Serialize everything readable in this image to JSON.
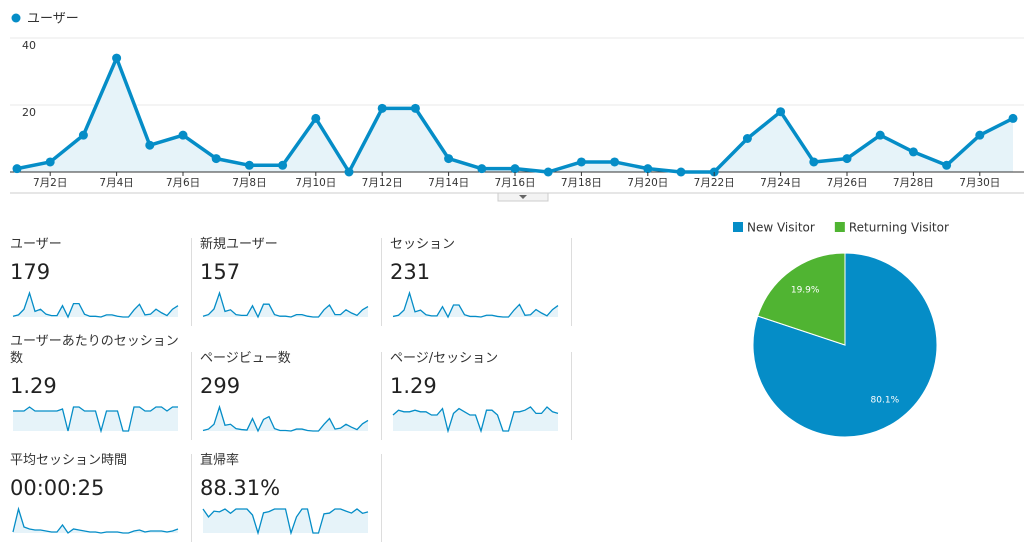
{
  "chart_data": [
    {
      "type": "line",
      "categories": [
        null,
        "7月2日",
        null,
        "7月4日",
        null,
        "7月6日",
        null,
        "7月8日",
        null,
        "7月10日",
        null,
        "7月12日",
        null,
        "7月14日",
        null,
        "7月16日",
        null,
        "7月18日",
        null,
        "7月20日",
        null,
        "7月22日",
        null,
        "7月24日",
        null,
        "7月26日",
        null,
        "7月28日",
        null,
        "7月30日",
        null
      ],
      "series": [
        {
          "name": "ユーザー",
          "color": "#058dc7",
          "values": [
            1,
            3,
            11,
            34,
            8,
            11,
            4,
            2,
            2,
            16,
            0,
            19,
            19,
            4,
            1,
            1,
            0,
            3,
            3,
            1,
            0,
            0,
            10,
            18,
            3,
            4,
            11,
            6,
            2,
            11,
            16
          ]
        }
      ],
      "ylim": [
        0,
        40
      ],
      "yticks": [
        20,
        40
      ],
      "grid": true,
      "legend": "top-left"
    },
    {
      "type": "pie",
      "categories": [
        "New Visitor",
        "Returning Visitor"
      ],
      "values": [
        80.1,
        19.9
      ],
      "value_labels": [
        "80.1%",
        "19.9%"
      ],
      "colors": [
        "#058dc7",
        "#50b432"
      ],
      "legend": "top"
    }
  ],
  "metrics": [
    {
      "label": "ユーザー",
      "value": "179"
    },
    {
      "label": "新規ユーザー",
      "value": "157",
      "sparkline": [
        1,
        3,
        10,
        30,
        7,
        9,
        3,
        2,
        2,
        14,
        0,
        16,
        16,
        3,
        1,
        1,
        0,
        3,
        3,
        1,
        0,
        0,
        9,
        15,
        3,
        3,
        9,
        5,
        2,
        9,
        13
      ]
    },
    {
      "label": "セッション",
      "value": "231",
      "sparkline": [
        1,
        3,
        12,
        42,
        9,
        12,
        4,
        2,
        2,
        18,
        0,
        21,
        21,
        4,
        1,
        1,
        0,
        3,
        3,
        1,
        0,
        0,
        12,
        22,
        3,
        4,
        13,
        7,
        2,
        13,
        20
      ]
    },
    {
      "label": "ユーザーあたりのセッション数",
      "value": "1.29",
      "sparkline": [
        1,
        1,
        1,
        1.2,
        1,
        1,
        1,
        1,
        1,
        1.1,
        0,
        1.2,
        1.2,
        1,
        1,
        1,
        0,
        1,
        1,
        1,
        0,
        0,
        1.2,
        1.2,
        1,
        1,
        1.2,
        1.2,
        1,
        1.2,
        1.2
      ]
    },
    {
      "label": "ページビュー数",
      "value": "299",
      "sparkline": [
        1,
        4,
        14,
        50,
        12,
        14,
        5,
        3,
        2,
        26,
        0,
        24,
        30,
        5,
        1,
        1,
        0,
        4,
        4,
        1,
        0,
        0,
        14,
        26,
        4,
        6,
        14,
        8,
        3,
        15,
        22
      ]
    },
    {
      "label": "ページ/セッション",
      "value": "1.29",
      "sparkline": [
        1,
        1.3,
        1.2,
        1.2,
        1.3,
        1.2,
        1.2,
        1,
        1,
        1.4,
        0,
        1.1,
        1.4,
        1.2,
        1,
        1,
        0,
        1.3,
        1.3,
        1,
        0,
        0,
        1.2,
        1.2,
        1.3,
        1.5,
        1.1,
        1.1,
        1.5,
        1.2,
        1.1
      ]
    },
    {
      "label": "平均セッション時間",
      "value": "00:00:25",
      "sparkline": [
        5,
        120,
        30,
        20,
        15,
        15,
        10,
        5,
        5,
        40,
        0,
        20,
        15,
        10,
        5,
        5,
        0,
        5,
        5,
        5,
        0,
        0,
        10,
        15,
        5,
        10,
        10,
        10,
        5,
        10,
        20
      ]
    },
    {
      "label": "直帰率",
      "value": "88.31%",
      "sparkline": [
        100,
        67,
        91,
        88,
        100,
        82,
        100,
        100,
        100,
        75,
        0,
        84,
        89,
        100,
        100,
        100,
        0,
        67,
        100,
        100,
        0,
        0,
        80,
        83,
        100,
        100,
        91,
        83,
        100,
        82,
        88
      ]
    }
  ]
}
